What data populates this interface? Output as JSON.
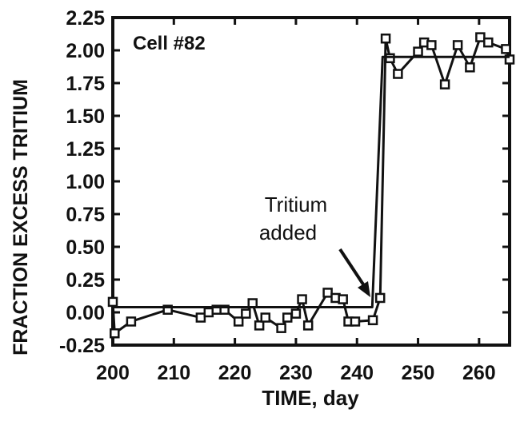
{
  "chart_data": {
    "type": "line",
    "annotation_top": "Cell #82",
    "annotation_arrow": [
      "Tritium",
      "added"
    ],
    "x_label": "TIME, day",
    "y_label": "FRACTION EXCESS TRITIUM",
    "xlim": [
      200,
      265
    ],
    "ylim": [
      -0.25,
      2.25
    ],
    "xticks": [
      200,
      210,
      220,
      230,
      240,
      250,
      260
    ],
    "yticks": [
      -0.25,
      {
        "value": 0,
        "label": "0.00"
      },
      0.25,
      {
        "value": 0.5,
        "label": "0.50"
      },
      0.75,
      {
        "value": 1,
        "label": "1.00"
      },
      1.25,
      {
        "value": 1.5,
        "label": "1.50"
      },
      1.75,
      {
        "value": 2,
        "label": "2.00"
      },
      2.25
    ],
    "series": [
      {
        "color": "#111111",
        "marker": "square",
        "x": [
          200,
          200.3,
          203,
          209,
          214.4,
          215.7,
          217,
          218.3,
          220.6,
          221.8,
          222.9,
          224,
          225,
          227.6,
          228.6,
          230,
          231,
          232,
          235.2,
          236.5,
          237.7,
          238.6,
          239.7,
          242.6,
          243.8,
          244.7,
          245.4,
          246.7,
          250,
          251,
          252.2,
          254.4,
          256.5,
          258.5,
          260.2,
          261.5,
          264.4,
          265
        ],
        "values": [
          0.08,
          -0.16,
          -0.07,
          0.02,
          -0.04,
          0,
          0.02,
          0.02,
          -0.07,
          -0.01,
          0.07,
          -0.1,
          -0.04,
          -0.12,
          -0.04,
          -0.01,
          0.1,
          -0.1,
          0.15,
          0.11,
          0.1,
          -0.07,
          -0.07,
          -0.06,
          0.11,
          2.09,
          1.94,
          1.82,
          1.99,
          2.06,
          2.04,
          1.74,
          2.04,
          1.87,
          2.1,
          2.06,
          2.01,
          1.93
        ]
      },
      {
        "color": "#111111",
        "marker": "none",
        "x": [
          200,
          242.5,
          244.2,
          265
        ],
        "values": [
          0.04,
          0.04,
          1.95,
          1.95
        ]
      }
    ]
  }
}
